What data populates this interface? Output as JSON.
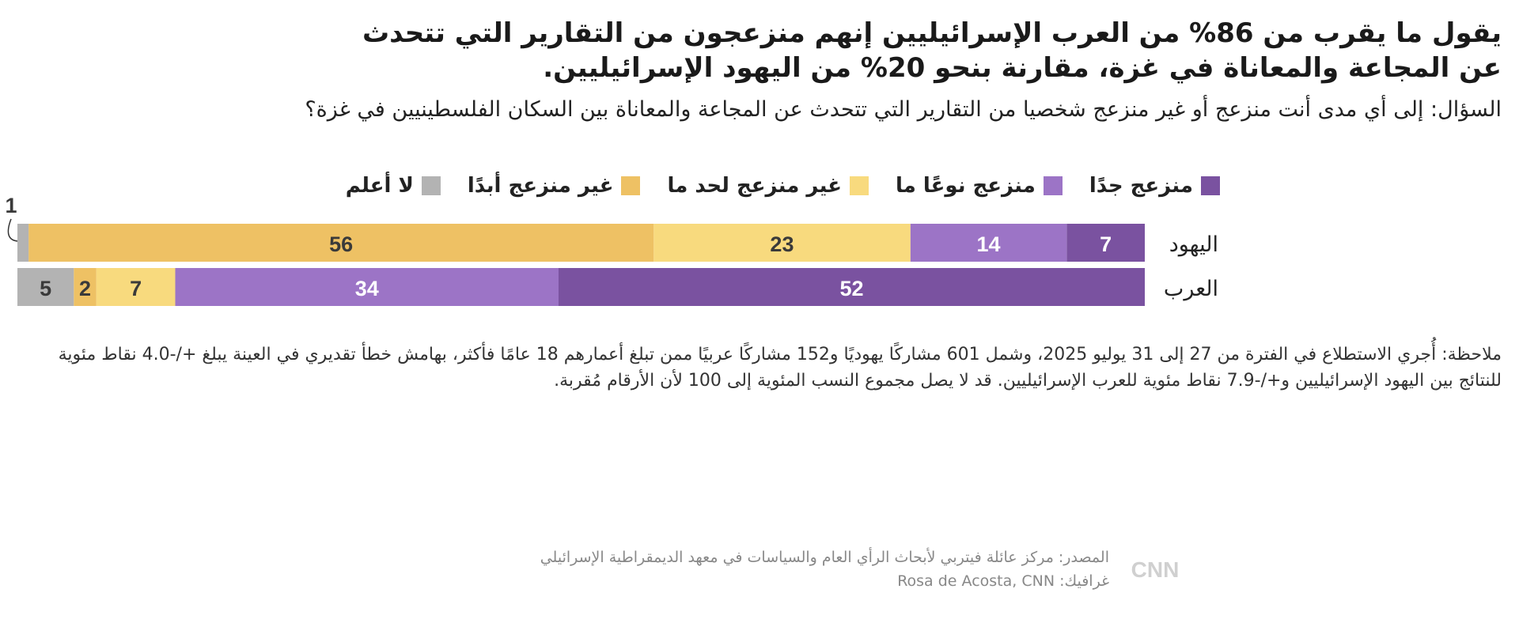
{
  "title": "يقول ما يقرب من 86% من العرب الإسرائيليين إنهم منزعجون من التقارير التي تتحدث عن المجاعة والمعاناة في غزة، مقارنة بنحو 20% من اليهود الإسرائيليين.",
  "subtitle": "السؤال: إلى أي مدى أنت منزعج أو غير منزعج شخصيا من التقارير التي تتحدث عن المجاعة والمعاناة بين السكان الفلسطينيين في غزة؟",
  "note": "ملاحظة: أُجري الاستطلاع في الفترة من 27 إلى 31 يوليو 2025، وشمل 601 مشاركًا يهوديًا و152 مشاركًا عربيًا ممن تبلغ أعمارهم 18 عامًا فأكثر، بهامش خطأ تقديري في العينة يبلغ +/-4.0 نقاط مئوية للنتائج بين اليهود الإسرائيليين و+/-7.9 نقاط مئوية للعرب الإسرائيليين. قد لا يصل مجموع النسب المئوية إلى 100 لأن الأرقام مُقربة.",
  "source": "المصدر: مركز عائلة فيتربي لأبحاث الرأي العام والسياسات في معهد الديمقراطية الإسرائيلي",
  "credit": "غرافيك: Rosa de Acosta, CNN",
  "logo": "CNN بالعربية",
  "chart_data": {
    "type": "stacked-bar-horizontal",
    "categories": [
      "اليهود",
      "العرب"
    ],
    "series": [
      {
        "name": "منزعج جدًا",
        "color": "#7a52a0",
        "values": [
          7,
          52
        ]
      },
      {
        "name": "منزعج نوعًا ما",
        "color": "#9c74c6",
        "values": [
          14,
          34
        ]
      },
      {
        "name": "غير منزعج لحد ما",
        "color": "#f8da7e",
        "values": [
          23,
          7
        ]
      },
      {
        "name": "غير منزعج أبدًا",
        "color": "#eec164",
        "values": [
          56,
          2
        ]
      },
      {
        "name": "لا أعلم",
        "color": "#b3b3b3",
        "values": [
          1,
          5
        ]
      }
    ],
    "direction": "right-to-left",
    "legend": "top"
  }
}
